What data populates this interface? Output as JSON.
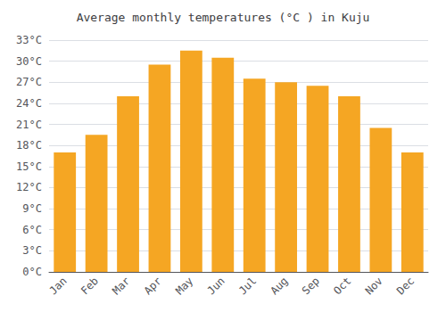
{
  "chart_data": {
    "type": "bar",
    "title": "Average monthly temperatures (°C ) in Kuju",
    "categories": [
      "Jan",
      "Feb",
      "Mar",
      "Apr",
      "May",
      "Jun",
      "Jul",
      "Aug",
      "Sep",
      "Oct",
      "Nov",
      "Dec"
    ],
    "values": [
      17.0,
      19.5,
      25.0,
      29.5,
      31.5,
      30.5,
      27.5,
      27.0,
      26.5,
      25.0,
      20.5,
      17.0
    ],
    "color": "#F5A623",
    "ylim": [
      0,
      33
    ],
    "yticks": [
      {
        "value": 0,
        "label": "0°C"
      },
      {
        "value": 3,
        "label": "3°C"
      },
      {
        "value": 6,
        "label": "6°C"
      },
      {
        "value": 9,
        "label": "9°C"
      },
      {
        "value": 12,
        "label": "12°C"
      },
      {
        "value": 15,
        "label": "15°C"
      },
      {
        "value": 18,
        "label": "18°C"
      },
      {
        "value": 21,
        "label": "21°C"
      },
      {
        "value": 24,
        "label": "24°C"
      },
      {
        "value": 27,
        "label": "27°C"
      },
      {
        "value": 30,
        "label": "30°C"
      },
      {
        "value": 33,
        "label": "33°C"
      }
    ],
    "grid": true
  }
}
